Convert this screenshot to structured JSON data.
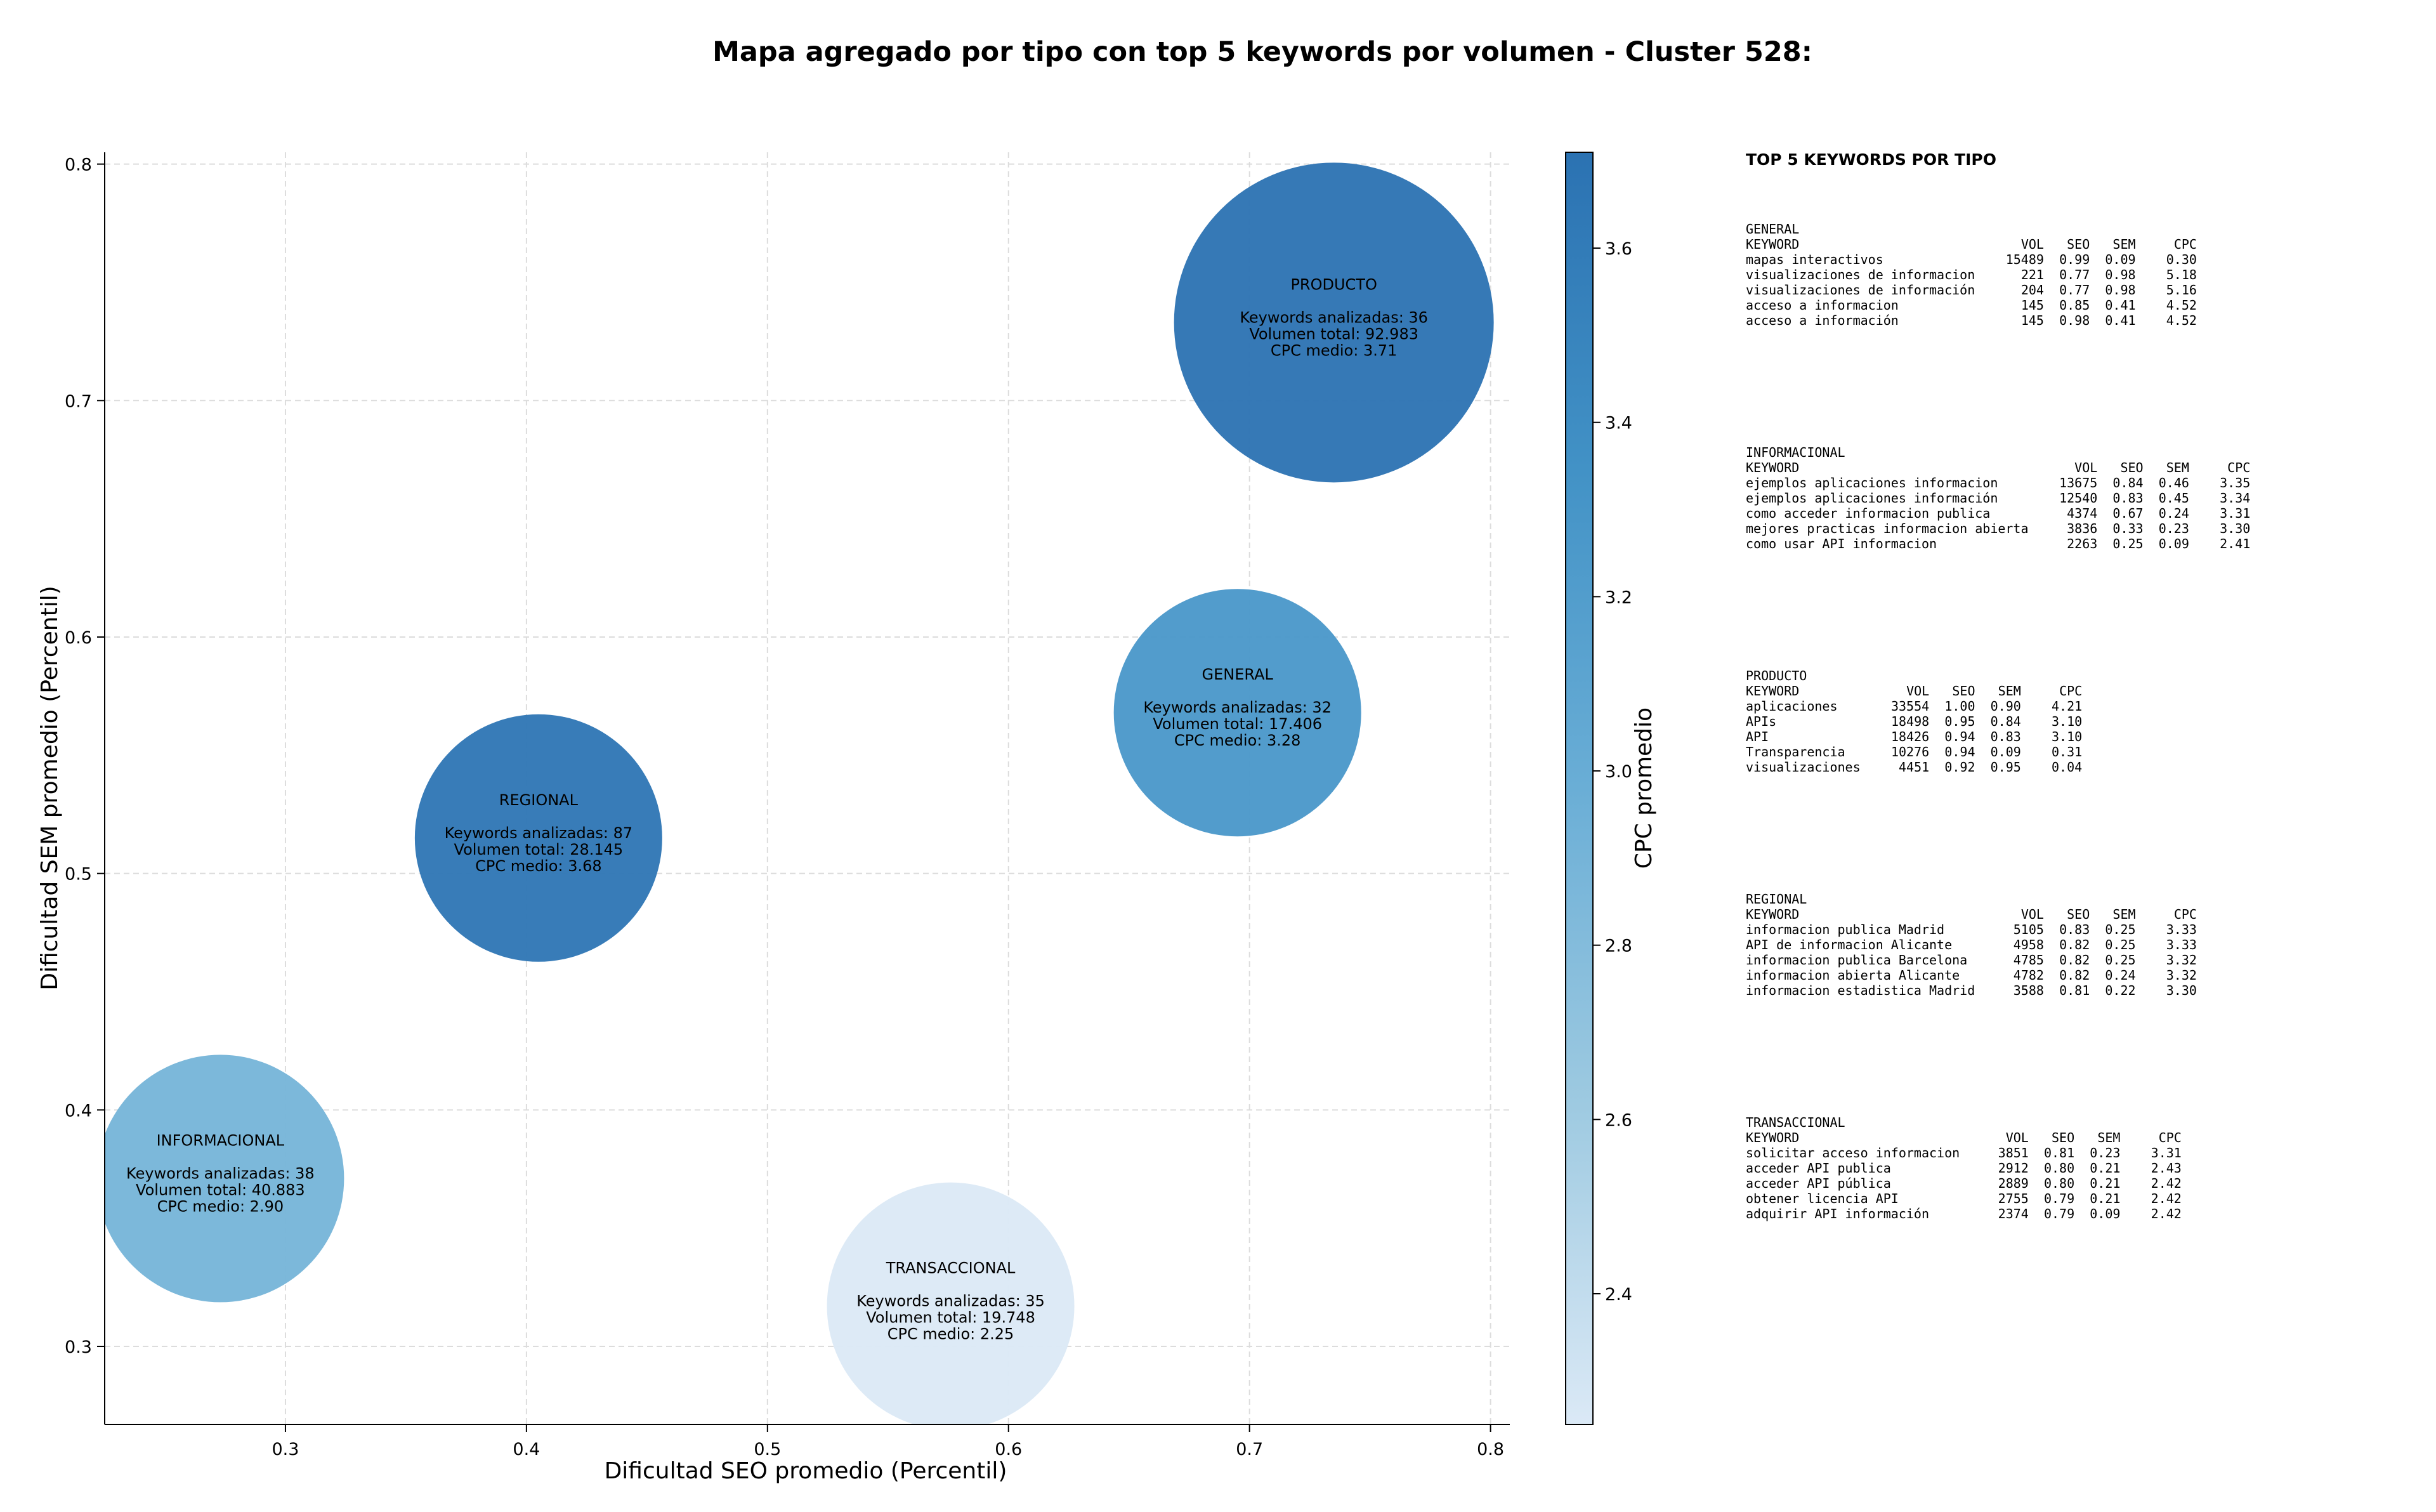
{
  "chart_data": {
    "type": "scatter",
    "title": "Mapa agregado por tipo con top 5 keywords por volumen - Cluster 528:",
    "xlabel": "Dificultad SEO promedio (Percentil)",
    "ylabel": "Dificultad SEM promedio (Percentil)",
    "xlim": [
      0.225,
      0.808
    ],
    "ylim": [
      0.267,
      0.805
    ],
    "xticks": [
      0.3,
      0.4,
      0.5,
      0.6,
      0.7,
      0.8
    ],
    "yticks": [
      0.3,
      0.4,
      0.5,
      0.6,
      0.7,
      0.8
    ],
    "grid": true,
    "colorbar": {
      "label": "CPC promedio",
      "min": 2.25,
      "max": 3.71,
      "ticks": [
        2.4,
        2.6,
        2.8,
        3.0,
        3.2,
        3.4,
        3.6
      ],
      "colormap": [
        "#dbe9f6",
        "#9ecae1",
        "#6aaed6",
        "#4292c6",
        "#2b72b2"
      ]
    },
    "points": [
      {
        "label": "PRODUCTO",
        "x": 0.735,
        "y": 0.733,
        "keywords": 36,
        "volume": 92983,
        "cpc": 3.71,
        "lines": [
          "Keywords analizadas: 36",
          "Volumen total: 92.983",
          "CPC medio: 3.71"
        ]
      },
      {
        "label": "GENERAL",
        "x": 0.695,
        "y": 0.568,
        "keywords": 32,
        "volume": 17406,
        "cpc": 3.28,
        "lines": [
          "Keywords analizadas: 32",
          "Volumen total: 17.406",
          "CPC medio: 3.28"
        ]
      },
      {
        "label": "REGIONAL",
        "x": 0.405,
        "y": 0.515,
        "keywords": 87,
        "volume": 28145,
        "cpc": 3.68,
        "lines": [
          "Keywords analizadas: 87",
          "Volumen total: 28.145",
          "CPC medio: 3.68"
        ]
      },
      {
        "label": "INFORMACIONAL",
        "x": 0.273,
        "y": 0.371,
        "keywords": 38,
        "volume": 40883,
        "cpc": 2.9,
        "lines": [
          "Keywords analizadas: 38",
          "Volumen total: 40.883",
          "CPC medio: 2.90"
        ]
      },
      {
        "label": "TRANSACCIONAL",
        "x": 0.576,
        "y": 0.317,
        "keywords": 35,
        "volume": 19748,
        "cpc": 2.25,
        "lines": [
          "Keywords analizadas: 35",
          "Volumen total: 19.748",
          "CPC medio: 2.25"
        ]
      }
    ]
  },
  "panel": {
    "title": "TOP 5 KEYWORDS POR TIPO",
    "header": [
      "KEYWORD",
      "VOL",
      "SEO",
      "SEM",
      "CPC"
    ],
    "groups": [
      {
        "name": "GENERAL",
        "rows": [
          [
            "mapas interactivos",
            "15489",
            "0.99",
            "0.09",
            "0.30"
          ],
          [
            "visualizaciones de informacion",
            "221",
            "0.77",
            "0.98",
            "5.18"
          ],
          [
            "visualizaciones de información",
            "204",
            "0.77",
            "0.98",
            "5.16"
          ],
          [
            "acceso a informacion",
            "145",
            "0.85",
            "0.41",
            "4.52"
          ],
          [
            "acceso a información",
            "145",
            "0.98",
            "0.41",
            "4.52"
          ]
        ]
      },
      {
        "name": "INFORMACIONAL",
        "rows": [
          [
            "ejemplos aplicaciones informacion",
            "13675",
            "0.84",
            "0.46",
            "3.35"
          ],
          [
            "ejemplos aplicaciones información",
            "12540",
            "0.83",
            "0.45",
            "3.34"
          ],
          [
            "como acceder informacion publica",
            "4374",
            "0.67",
            "0.24",
            "3.31"
          ],
          [
            "mejores practicas informacion abierta",
            "3836",
            "0.33",
            "0.23",
            "3.30"
          ],
          [
            "como usar API informacion",
            "2263",
            "0.25",
            "0.09",
            "2.41"
          ]
        ]
      },
      {
        "name": "PRODUCTO",
        "rows": [
          [
            "aplicaciones",
            "33554",
            "1.00",
            "0.90",
            "4.21"
          ],
          [
            "APIs",
            "18498",
            "0.95",
            "0.84",
            "3.10"
          ],
          [
            "API",
            "18426",
            "0.94",
            "0.83",
            "3.10"
          ],
          [
            "Transparencia",
            "10276",
            "0.94",
            "0.09",
            "0.31"
          ],
          [
            "visualizaciones",
            "4451",
            "0.92",
            "0.95",
            "0.04"
          ]
        ]
      },
      {
        "name": "REGIONAL",
        "rows": [
          [
            "informacion publica Madrid",
            "5105",
            "0.83",
            "0.25",
            "3.33"
          ],
          [
            "API de informacion Alicante",
            "4958",
            "0.82",
            "0.25",
            "3.33"
          ],
          [
            "informacion publica Barcelona",
            "4785",
            "0.82",
            "0.25",
            "3.32"
          ],
          [
            "informacion abierta Alicante",
            "4782",
            "0.82",
            "0.24",
            "3.32"
          ],
          [
            "informacion estadistica Madrid",
            "3588",
            "0.81",
            "0.22",
            "3.30"
          ]
        ]
      },
      {
        "name": "TRANSACCIONAL",
        "rows": [
          [
            "solicitar acceso informacion",
            "3851",
            "0.81",
            "0.23",
            "3.31"
          ],
          [
            "acceder API publica",
            "2912",
            "0.80",
            "0.21",
            "2.43"
          ],
          [
            "acceder API pública",
            "2889",
            "0.80",
            "0.21",
            "2.42"
          ],
          [
            "obtener licencia API",
            "2755",
            "0.79",
            "0.21",
            "2.42"
          ],
          [
            "adquirir API información",
            "2374",
            "0.79",
            "0.09",
            "2.42"
          ]
        ]
      }
    ]
  }
}
